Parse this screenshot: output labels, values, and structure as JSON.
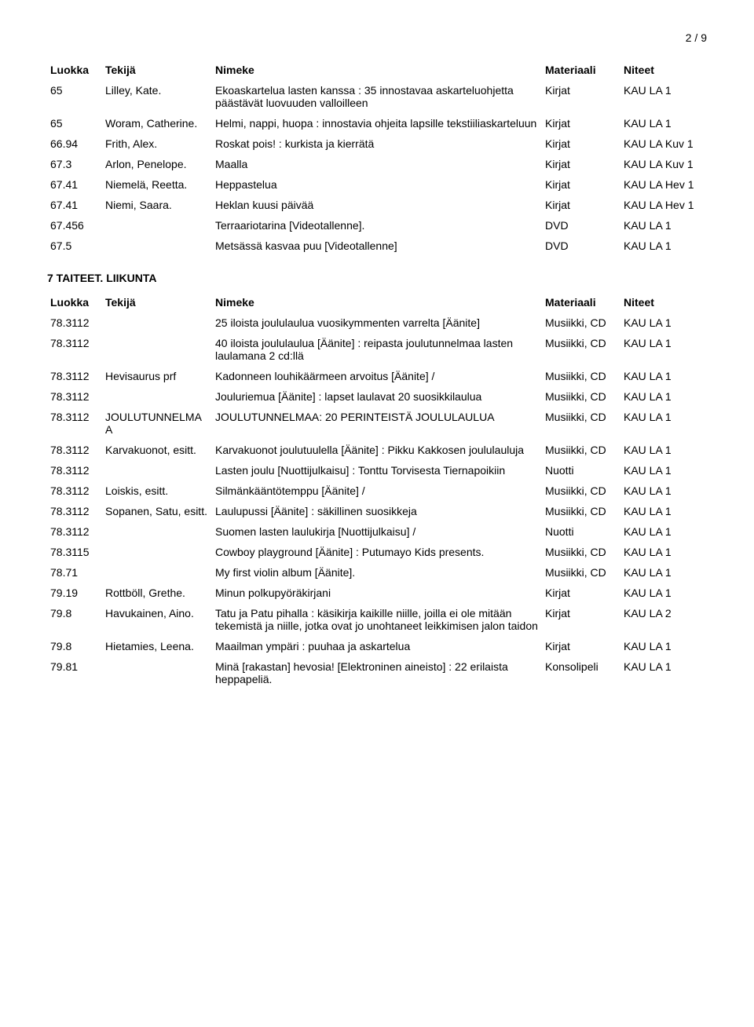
{
  "page_number": "2 / 9",
  "headers": {
    "luokka": "Luokka",
    "tekija": "Tekijä",
    "nimeke": "Nimeke",
    "materiaali": "Materiaali",
    "niteet": "Niteet"
  },
  "section1_rows": [
    {
      "luokka": "65",
      "tekija": "Lilley, Kate.",
      "nimeke": "Ekoaskartelua lasten kanssa : 35 innostavaa askarteluohjetta päästävät luovuuden valloilleen",
      "materiaali": "Kirjat",
      "niteet": "KAU LA 1"
    },
    {
      "luokka": "65",
      "tekija": "Woram, Catherine.",
      "nimeke": "Helmi, nappi, huopa : innostavia ohjeita lapsille tekstiiliaskarteluun",
      "materiaali": "Kirjat",
      "niteet": "KAU LA 1"
    },
    {
      "luokka": "66.94",
      "tekija": "Frith, Alex.",
      "nimeke": "Roskat pois! : kurkista ja kierrätä",
      "materiaali": "Kirjat",
      "niteet": "KAU LA Kuv 1"
    },
    {
      "luokka": "67.3",
      "tekija": "Arlon, Penelope.",
      "nimeke": "Maalla",
      "materiaali": "Kirjat",
      "niteet": "KAU LA Kuv 1"
    },
    {
      "luokka": "67.41",
      "tekija": "Niemelä, Reetta.",
      "nimeke": "Heppastelua",
      "materiaali": "Kirjat",
      "niteet": "KAU LA Hev 1"
    },
    {
      "luokka": "67.41",
      "tekija": "Niemi, Saara.",
      "nimeke": "Heklan kuusi päivää",
      "materiaali": "Kirjat",
      "niteet": "KAU LA Hev 1"
    },
    {
      "luokka": "67.456",
      "tekija": "",
      "nimeke": "Terraariotarina [Videotallenne].",
      "materiaali": "DVD",
      "niteet": "KAU LA 1"
    },
    {
      "luokka": "67.5",
      "tekija": "",
      "nimeke": "Metsässä kasvaa puu [Videotallenne]",
      "materiaali": "DVD",
      "niteet": "KAU LA 1"
    }
  ],
  "section2_heading": "7 TAITEET. LIIKUNTA",
  "section2_rows": [
    {
      "luokka": "78.3112",
      "tekija": "",
      "nimeke": "25 iloista joululaulua vuosikymmenten varrelta [Äänite]",
      "materiaali": "Musiikki, CD",
      "niteet": "KAU LA 1"
    },
    {
      "luokka": "78.3112",
      "tekija": "",
      "nimeke": "40 iloista joululaulua [Äänite] : reipasta joulutunnelmaa lasten laulamana 2 cd:llä",
      "materiaali": "Musiikki, CD",
      "niteet": "KAU LA 1"
    },
    {
      "luokka": "78.3112",
      "tekija": "Hevisaurus prf",
      "nimeke": "Kadonneen louhikäärmeen arvoitus [Äänite] /",
      "materiaali": "Musiikki, CD",
      "niteet": "KAU LA 1"
    },
    {
      "luokka": "78.3112",
      "tekija": "",
      "nimeke": "Jouluriemua [Äänite] : lapset laulavat 20 suosikkilaulua",
      "materiaali": "Musiikki, CD",
      "niteet": "KAU LA 1"
    },
    {
      "luokka": "78.3112",
      "tekija": "JOULUTUNNELMAA",
      "nimeke": "JOULUTUNNELMAA: 20 PERINTEISTÄ JOULULAULUA",
      "materiaali": "Musiikki, CD",
      "niteet": "KAU LA 1"
    },
    {
      "luokka": "78.3112",
      "tekija": "Karvakuonot, esitt.",
      "nimeke": "Karvakuonot joulutuulella [Äänite] : Pikku Kakkosen joululauluja",
      "materiaali": "Musiikki, CD",
      "niteet": "KAU LA 1"
    },
    {
      "luokka": "78.3112",
      "tekija": "",
      "nimeke": "Lasten joulu [Nuottijulkaisu] : Tonttu Torvisesta Tiernapoikiin",
      "materiaali": "Nuotti",
      "niteet": "KAU LA 1"
    },
    {
      "luokka": "78.3112",
      "tekija": "Loiskis, esitt.",
      "nimeke": "Silmänkääntötemppu [Äänite] /",
      "materiaali": "Musiikki, CD",
      "niteet": "KAU LA 1"
    },
    {
      "luokka": "78.3112",
      "tekija": "Sopanen, Satu, esitt.",
      "nimeke": "Laulupussi [Äänite] : säkillinen suosikkeja",
      "materiaali": "Musiikki, CD",
      "niteet": "KAU LA 1"
    },
    {
      "luokka": "78.3112",
      "tekija": "",
      "nimeke": "Suomen lasten laulukirja [Nuottijulkaisu] /",
      "materiaali": "Nuotti",
      "niteet": "KAU LA 1"
    },
    {
      "luokka": "78.3115",
      "tekija": "",
      "nimeke": "Cowboy playground [Äänite] : Putumayo Kids presents.",
      "materiaali": "Musiikki, CD",
      "niteet": "KAU LA 1"
    },
    {
      "luokka": "78.71",
      "tekija": "",
      "nimeke": "My first violin album [Äänite].",
      "materiaali": "Musiikki, CD",
      "niteet": "KAU LA 1"
    },
    {
      "luokka": "79.19",
      "tekija": "Rottböll, Grethe.",
      "nimeke": "Minun polkupyöräkirjani",
      "materiaali": "Kirjat",
      "niteet": "KAU LA 1"
    },
    {
      "luokka": "79.8",
      "tekija": "Havukainen, Aino.",
      "nimeke": "Tatu ja Patu pihalla : käsikirja kaikille niille, joilla ei ole mitään tekemistä ja niille, jotka ovat jo unohtaneet leikkimisen jalon taidon",
      "materiaali": "Kirjat",
      "niteet": "KAU LA 2"
    },
    {
      "luokka": "79.8",
      "tekija": "Hietamies, Leena.",
      "nimeke": "Maailman ympäri : puuhaa ja askartelua",
      "materiaali": "Kirjat",
      "niteet": "KAU LA 1"
    },
    {
      "luokka": "79.81",
      "tekija": "",
      "nimeke": "Minä [rakastan] hevosia! [Elektroninen aineisto] : 22 erilaista heppapeliä.",
      "materiaali": "Konsolipeli",
      "niteet": "KAU LA 1"
    }
  ]
}
